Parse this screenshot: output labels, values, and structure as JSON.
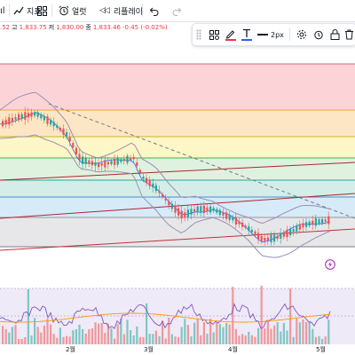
{
  "toolbar": {
    "indicators_label": "지표",
    "alerts_label": "얼럿",
    "replay_label": "리플레이"
  },
  "legend": {
    "o_tail": ".52",
    "h_label": "고",
    "h_value": "1,833.75",
    "l_label": "저",
    "l_value": "1,830.00",
    "c_label": "종",
    "c_value": "1,833.46",
    "change": "-0.45 (-0.02%)"
  },
  "drawing_toolbar": {
    "line_width_label": "2px",
    "line_color": "#f23645",
    "text_color": "#2962ff"
  },
  "time_axis": {
    "labels": [
      "2월",
      "3월",
      "4월",
      "5월"
    ]
  },
  "colors": {
    "up": "#26a69a",
    "down": "#ef5350",
    "bollinger": "#9c8fb5",
    "ma_blue": "#2962ff",
    "ma_orange": "#ff9800"
  }
}
